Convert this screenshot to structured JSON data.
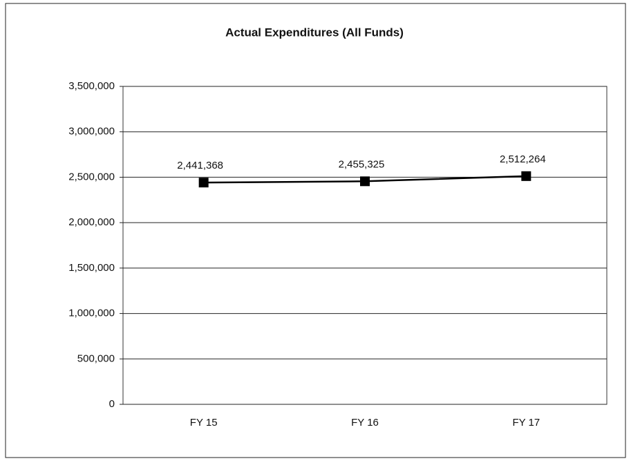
{
  "chart_data": {
    "type": "line",
    "title": "Actual Expenditures (All Funds)",
    "categories": [
      "FY 15",
      "FY 16",
      "FY 17"
    ],
    "values": [
      2441368,
      2455325,
      2512264
    ],
    "value_labels": [
      "2,441,368",
      "2,455,325",
      "2,512,264"
    ],
    "color": "#000000",
    "ylim": [
      0,
      3500000
    ],
    "yticks": [
      {
        "value": 0,
        "label": "0"
      },
      {
        "value": 500000,
        "label": "500,000"
      },
      {
        "value": 1000000,
        "label": "1,000,000"
      },
      {
        "value": 1500000,
        "label": "1,500,000"
      },
      {
        "value": 2000000,
        "label": "2,000,000"
      },
      {
        "value": 2500000,
        "label": "2,500,000"
      },
      {
        "value": 3000000,
        "label": "3,000,000"
      },
      {
        "value": 3500000,
        "label": "3,500,000"
      }
    ],
    "grid": true
  }
}
